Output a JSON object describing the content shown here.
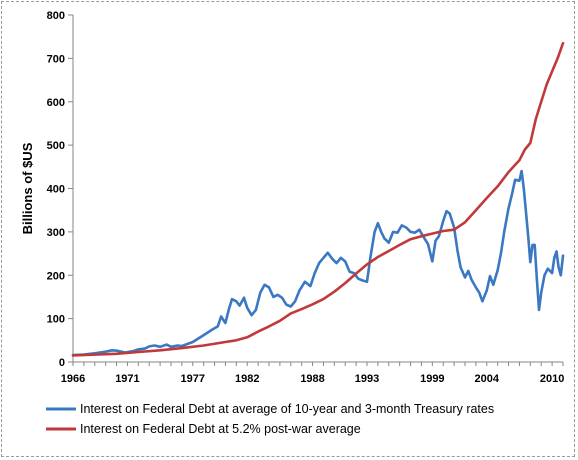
{
  "chart_data": {
    "type": "line",
    "title": "",
    "xlabel": "",
    "ylabel": "Billions of $US",
    "xlim": [
      1966,
      2011
    ],
    "ylim": [
      0,
      800
    ],
    "x_ticks": [
      1966,
      1971,
      1977,
      1982,
      1988,
      1993,
      1999,
      2004,
      2010
    ],
    "y_ticks": [
      0,
      100,
      200,
      300,
      400,
      500,
      600,
      700,
      800
    ],
    "grid": "none",
    "legend_placement": "bottom",
    "series": [
      {
        "name": "Interest on Federal Debt at average of 10-year and 3-month Treasury rates",
        "color": "#3a78c2",
        "x": [
          1966,
          1967,
          1968,
          1969,
          1969.6,
          1970,
          1970.8,
          1971.5,
          1972,
          1972.6,
          1973,
          1973.5,
          1974,
          1974.6,
          1975,
          1975.6,
          1976,
          1977,
          1978,
          1978.8,
          1979.3,
          1979.6,
          1980,
          1980.3,
          1980.6,
          1981,
          1981.3,
          1981.7,
          1982,
          1982.4,
          1982.8,
          1983.2,
          1983.6,
          1984,
          1984.4,
          1984.8,
          1985.2,
          1985.6,
          1986,
          1986.4,
          1986.8,
          1987.3,
          1987.8,
          1988.2,
          1988.6,
          1989,
          1989.4,
          1989.8,
          1990.2,
          1990.6,
          1991,
          1991.4,
          1991.8,
          1992.2,
          1992.6,
          1993,
          1993.3,
          1993.7,
          1994,
          1994.3,
          1994.6,
          1995,
          1995.4,
          1995.8,
          1996.2,
          1996.6,
          1997,
          1997.4,
          1997.8,
          1998.2,
          1998.6,
          1999,
          1999.3,
          1999.6,
          2000,
          2000.3,
          2000.6,
          2001,
          2001.3,
          2001.6,
          2002,
          2002.3,
          2002.6,
          2003,
          2003.3,
          2003.6,
          2004,
          2004.3,
          2004.6,
          2005,
          2005.3,
          2005.6,
          2006,
          2006.3,
          2006.6,
          2007,
          2007.2,
          2007.4,
          2007.6,
          2007.8,
          2008,
          2008.2,
          2008.4,
          2008.6,
          2008.8,
          2009,
          2009.3,
          2009.6,
          2010,
          2010.2,
          2010.4,
          2010.6,
          2010.8,
          2011
        ],
        "values": [
          16,
          17,
          20,
          24,
          27,
          26,
          22,
          25,
          29,
          31,
          36,
          38,
          35,
          40,
          35,
          38,
          37,
          46,
          62,
          75,
          82,
          105,
          90,
          120,
          145,
          140,
          130,
          148,
          125,
          108,
          120,
          160,
          178,
          172,
          150,
          155,
          148,
          132,
          128,
          140,
          165,
          185,
          175,
          205,
          228,
          240,
          252,
          238,
          228,
          240,
          232,
          208,
          205,
          192,
          188,
          185,
          240,
          300,
          320,
          300,
          285,
          275,
          300,
          298,
          315,
          310,
          300,
          298,
          305,
          288,
          272,
          232,
          280,
          290,
          325,
          348,
          342,
          310,
          258,
          218,
          195,
          210,
          190,
          172,
          160,
          140,
          165,
          198,
          178,
          212,
          250,
          300,
          355,
          385,
          420,
          418,
          440,
          400,
          345,
          290,
          230,
          270,
          270,
          190,
          120,
          160,
          200,
          215,
          205,
          240,
          255,
          218,
          200,
          245
        ]
      },
      {
        "name": "Interest on Federal Debt at 5.2% post-war average",
        "color": "#c0393b",
        "x": [
          1966,
          1968,
          1970,
          1972,
          1974,
          1976,
          1978,
          1980,
          1981,
          1982,
          1983,
          1984,
          1985,
          1986,
          1987,
          1988,
          1989,
          1990,
          1991,
          1992,
          1993,
          1994,
          1995,
          1996,
          1997,
          1998,
          1999,
          2000,
          2001,
          2002,
          2003,
          2004,
          2005,
          2006,
          2007,
          2007.5,
          2008,
          2008.5,
          2009,
          2009.5,
          2010,
          2010.5,
          2011
        ],
        "values": [
          15,
          17,
          19,
          23,
          27,
          32,
          38,
          46,
          50,
          57,
          70,
          82,
          95,
          112,
          122,
          133,
          145,
          162,
          182,
          204,
          225,
          242,
          256,
          270,
          283,
          290,
          296,
          302,
          305,
          322,
          350,
          378,
          405,
          438,
          465,
          490,
          505,
          560,
          600,
          640,
          670,
          700,
          735
        ]
      }
    ]
  }
}
